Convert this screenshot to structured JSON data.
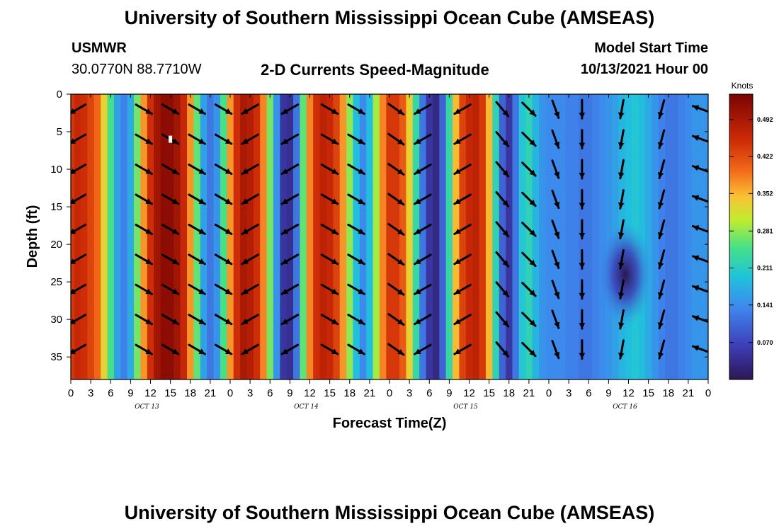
{
  "header": {
    "title": "University of Southern Mississippi Ocean Cube (AMSEAS)",
    "station": "USMWR",
    "location": "30.0770N  88.7710W",
    "plot_title": "2-D Currents Speed-Magnitude",
    "start_label": "Model Start Time",
    "start_value": "10/13/2021 Hour 00"
  },
  "footer": {
    "title": "University of Southern Mississippi Ocean Cube (AMSEAS)"
  },
  "chart_data": {
    "type": "heatmap",
    "title": "2-D Currents Speed-Magnitude",
    "xlabel": "Forecast Time(Z)",
    "ylabel": "Depth (ft)",
    "x_range_hours": [
      0,
      96
    ],
    "x_tick_hours": [
      0,
      3,
      6,
      9,
      12,
      15,
      18,
      21,
      24,
      27,
      30,
      33,
      36,
      39,
      42,
      45,
      48,
      51,
      54,
      57,
      60,
      63,
      66,
      69,
      72,
      75,
      78,
      81,
      84,
      87,
      90,
      93,
      96
    ],
    "x_tick_labels": [
      "0",
      "3",
      "6",
      "9",
      "12",
      "15",
      "18",
      "21",
      "0",
      "3",
      "6",
      "9",
      "12",
      "15",
      "18",
      "21",
      "0",
      "3",
      "6",
      "9",
      "12",
      "15",
      "18",
      "21",
      "0",
      "3",
      "6",
      "9",
      "12",
      "15",
      "18",
      "21",
      "0"
    ],
    "date_labels": [
      {
        "text": "OCT 13",
        "hour": 12
      },
      {
        "text": "OCT 14",
        "hour": 36
      },
      {
        "text": "OCT 15",
        "hour": 60
      },
      {
        "text": "OCT 16",
        "hour": 84
      }
    ],
    "y_range": [
      0,
      38
    ],
    "y_ticks": [
      0,
      5,
      10,
      15,
      20,
      25,
      30,
      35
    ],
    "colorbar": {
      "units": "Knots",
      "range": [
        0.0,
        0.54
      ],
      "ticks": [
        0.492,
        0.422,
        0.352,
        0.281,
        0.211,
        0.141,
        0.07
      ],
      "tick_labels": [
        "0.492",
        "0.422",
        "0.352",
        "0.281",
        "0.211",
        "0.141",
        "0.070"
      ]
    },
    "speed_profile": {
      "hours": [
        0,
        1,
        2,
        3,
        4,
        5,
        6,
        7,
        8,
        9,
        10,
        11,
        12,
        13,
        14,
        15,
        16,
        17,
        18,
        19,
        20,
        21,
        22,
        23,
        24,
        25,
        26,
        27,
        28,
        29,
        30,
        31,
        32,
        33,
        34,
        35,
        36,
        37,
        38,
        39,
        40,
        41,
        42,
        43,
        44,
        45,
        46,
        47,
        48,
        49,
        50,
        51,
        52,
        53,
        54,
        55,
        56,
        57,
        58,
        59,
        60,
        61,
        62,
        63,
        64,
        65,
        66,
        67,
        68,
        69,
        70,
        71,
        72,
        73,
        74,
        75,
        76,
        77,
        78,
        79,
        80,
        81,
        82,
        83,
        84,
        85,
        86,
        87,
        88,
        89,
        90,
        91,
        92,
        93,
        94,
        95,
        96
      ],
      "knots": [
        0.44,
        0.46,
        0.45,
        0.43,
        0.4,
        0.33,
        0.25,
        0.16,
        0.13,
        0.17,
        0.27,
        0.37,
        0.45,
        0.5,
        0.52,
        0.52,
        0.5,
        0.46,
        0.37,
        0.26,
        0.16,
        0.12,
        0.15,
        0.25,
        0.37,
        0.45,
        0.49,
        0.48,
        0.45,
        0.38,
        0.27,
        0.15,
        0.05,
        0.04,
        0.12,
        0.26,
        0.38,
        0.45,
        0.47,
        0.46,
        0.43,
        0.37,
        0.28,
        0.19,
        0.14,
        0.19,
        0.29,
        0.38,
        0.44,
        0.44,
        0.41,
        0.33,
        0.23,
        0.12,
        0.05,
        0.03,
        0.1,
        0.23,
        0.35,
        0.43,
        0.46,
        0.47,
        0.44,
        0.35,
        0.22,
        0.1,
        0.05,
        0.12,
        0.2,
        0.22,
        0.18,
        0.15,
        0.14,
        0.14,
        0.14,
        0.13,
        0.13,
        0.12,
        0.12,
        0.13,
        0.14,
        0.15,
        0.16,
        0.18,
        0.19,
        0.2,
        0.19,
        0.17,
        0.15,
        0.13,
        0.12,
        0.12,
        0.13,
        0.14,
        0.15,
        0.15,
        0.15
      ]
    },
    "dark_core": {
      "hour_center": 83.5,
      "depth_center": 24,
      "hour_radius": 4,
      "depth_radius": 7,
      "knots": 0.04
    },
    "vector_columns": [
      {
        "hour": 1,
        "angle_deg": 150,
        "depths": [
          2,
          6,
          10,
          14,
          18,
          22,
          26,
          30,
          34
        ]
      },
      {
        "hour": 11,
        "angle_deg": 30,
        "depths": [
          2,
          6,
          10,
          14,
          18,
          22,
          26,
          30,
          34
        ]
      },
      {
        "hour": 15,
        "angle_deg": 30,
        "depths": [
          2,
          6,
          10,
          14,
          18,
          22,
          26,
          30,
          34
        ]
      },
      {
        "hour": 19,
        "angle_deg": 30,
        "depths": [
          2,
          6,
          10,
          14,
          18,
          22,
          26,
          30,
          34
        ]
      },
      {
        "hour": 23,
        "angle_deg": 30,
        "depths": [
          2,
          6,
          10,
          14,
          18,
          22,
          26,
          30,
          34
        ]
      },
      {
        "hour": 27,
        "angle_deg": 150,
        "depths": [
          2,
          6,
          10,
          14,
          18,
          22,
          26,
          30,
          34
        ]
      },
      {
        "hour": 33,
        "angle_deg": 150,
        "depths": [
          2,
          6,
          10,
          14,
          18,
          22,
          26,
          30,
          34
        ]
      },
      {
        "hour": 39,
        "angle_deg": 30,
        "depths": [
          2,
          6,
          10,
          14,
          18,
          22,
          26,
          30,
          34
        ]
      },
      {
        "hour": 43,
        "angle_deg": 30,
        "depths": [
          2,
          6,
          10,
          14,
          18,
          22,
          26,
          30,
          34
        ]
      },
      {
        "hour": 49,
        "angle_deg": 35,
        "depths": [
          2,
          6,
          10,
          14,
          18,
          22,
          26,
          30,
          34
        ]
      },
      {
        "hour": 53,
        "angle_deg": 150,
        "depths": [
          2,
          6,
          10,
          14,
          18,
          22,
          26,
          30,
          34
        ]
      },
      {
        "hour": 59,
        "angle_deg": 150,
        "depths": [
          2,
          6,
          10,
          14,
          18,
          22,
          26,
          30,
          34
        ]
      },
      {
        "hour": 65,
        "angle_deg": 50,
        "depths": [
          2,
          6,
          10,
          14,
          18,
          22,
          26,
          30,
          34
        ]
      },
      {
        "hour": 69,
        "angle_deg": 45,
        "depths": [
          2,
          6,
          10,
          14,
          18,
          22,
          26,
          30,
          34
        ]
      },
      {
        "hour": 73,
        "angle_deg": 70,
        "depths": [
          2,
          6,
          10,
          14,
          18,
          22,
          26,
          30,
          34
        ]
      },
      {
        "hour": 77,
        "angle_deg": 90,
        "depths": [
          2,
          6,
          10,
          14,
          18,
          22,
          26,
          30,
          34
        ]
      },
      {
        "hour": 83,
        "angle_deg": 100,
        "depths": [
          2,
          6,
          10,
          14,
          18,
          22,
          26,
          30,
          34
        ]
      },
      {
        "hour": 89,
        "angle_deg": 105,
        "depths": [
          2,
          6,
          10,
          14,
          18,
          22,
          26,
          30,
          34
        ]
      },
      {
        "hour": 95,
        "angle_deg": 200,
        "depths": [
          2,
          6,
          10,
          14,
          18,
          22,
          26,
          30,
          34
        ]
      }
    ],
    "marker": {
      "hour": 15,
      "depth": 6
    }
  }
}
